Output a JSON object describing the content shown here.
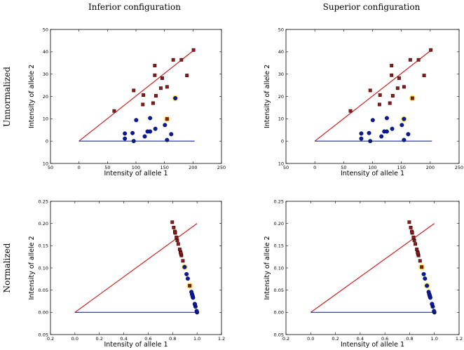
{
  "column_titles": [
    "Inferior configuration",
    "Superior configuration"
  ],
  "row_labels": [
    "Unnormalized",
    "Normalized"
  ],
  "colors": {
    "square": "#8b1a1a",
    "circle": "#0a1a9a",
    "highlight": "#ffe44d",
    "ref_line_red": "#cc2222",
    "ref_line_blue": "#1a22cc"
  },
  "chart_data": [
    {
      "type": "scatter",
      "panel": "Inferior configuration / Unnormalized",
      "xlabel": "Intensity of allele 1",
      "ylabel": "Intensity of allele 2",
      "xlim": [
        -50,
        250
      ],
      "ylim": [
        -10,
        50
      ],
      "xticks": [
        -50,
        0,
        50,
        100,
        150,
        200,
        250
      ],
      "xtick_labels": [
        "50",
        "0",
        "50",
        "100",
        "150",
        "200",
        "250"
      ],
      "yticks": [
        -10,
        0,
        10,
        20,
        30,
        40,
        50
      ],
      "ytick_labels": [
        "10",
        "0",
        "10",
        "20",
        "30",
        "40",
        "50"
      ],
      "lines": [
        {
          "color": "red",
          "x": [
            0,
            203
          ],
          "y": [
            0,
            41
          ]
        },
        {
          "color": "blue",
          "x": [
            0,
            203
          ],
          "y": [
            0,
            0
          ]
        }
      ],
      "squares": [
        [
          61.8,
          13.5
        ],
        [
          96,
          22.7
        ],
        [
          113,
          20.6
        ],
        [
          112,
          16.4
        ],
        [
          130,
          17
        ],
        [
          135,
          20.3
        ],
        [
          133,
          33.8
        ],
        [
          133,
          29.5
        ],
        [
          146,
          28.2
        ],
        [
          143.5,
          23.7
        ],
        [
          154.5,
          24.3
        ],
        [
          165.4,
          36.4
        ],
        [
          179.7,
          36.4
        ],
        [
          189.4,
          29.4
        ],
        [
          201,
          40.8
        ],
        [
          154.5,
          9.9
        ]
      ],
      "circles": [
        [
          80.5,
          3.4
        ],
        [
          80.5,
          1.1
        ],
        [
          94,
          3.6
        ],
        [
          96,
          0
        ],
        [
          100.4,
          9.4
        ],
        [
          115.4,
          2.1
        ],
        [
          120.3,
          4.3
        ],
        [
          124.8,
          4.3
        ],
        [
          124.8,
          10.3
        ],
        [
          134,
          5.5
        ],
        [
          150.8,
          7.2
        ],
        [
          161.8,
          3.1
        ],
        [
          154.5,
          0.5
        ],
        [
          169,
          19.2
        ]
      ],
      "highlighted": [
        {
          "marker": "square",
          "x": 154.5,
          "y": 9.9
        },
        {
          "marker": "circle",
          "x": 169,
          "y": 19.2
        }
      ]
    },
    {
      "type": "scatter",
      "panel": "Superior configuration / Unnormalized",
      "xlabel": "Intensity of allele 1",
      "ylabel": "Intensity of allele 2",
      "xlim": [
        -50,
        250
      ],
      "ylim": [
        -10,
        50
      ],
      "xticks": [
        -50,
        0,
        50,
        100,
        150,
        200,
        250
      ],
      "xtick_labels": [
        "50",
        "0",
        "50",
        "100",
        "150",
        "200",
        "250"
      ],
      "yticks": [
        -10,
        0,
        10,
        20,
        30,
        40,
        50
      ],
      "ytick_labels": [
        "10",
        "0",
        "10",
        "20",
        "30",
        "40",
        "50"
      ],
      "lines": [
        {
          "color": "red",
          "x": [
            0,
            203
          ],
          "y": [
            0,
            41
          ]
        },
        {
          "color": "blue",
          "x": [
            0,
            203
          ],
          "y": [
            0,
            0
          ]
        }
      ],
      "squares": [
        [
          61.8,
          13.5
        ],
        [
          96,
          22.7
        ],
        [
          113,
          20.6
        ],
        [
          112,
          16.4
        ],
        [
          130,
          17
        ],
        [
          135,
          20.3
        ],
        [
          133,
          33.8
        ],
        [
          133,
          29.5
        ],
        [
          146,
          28.2
        ],
        [
          143.5,
          23.7
        ],
        [
          154.5,
          24.3
        ],
        [
          165.4,
          36.4
        ],
        [
          179.7,
          36.4
        ],
        [
          189.4,
          29.4
        ],
        [
          201,
          40.8
        ],
        [
          169,
          19.2
        ]
      ],
      "circles": [
        [
          80.5,
          3.4
        ],
        [
          80.5,
          1.1
        ],
        [
          94,
          3.6
        ],
        [
          96,
          0
        ],
        [
          100.4,
          9.4
        ],
        [
          115.4,
          2.1
        ],
        [
          120.3,
          4.3
        ],
        [
          124.8,
          4.3
        ],
        [
          124.8,
          10.3
        ],
        [
          134,
          5.5
        ],
        [
          150.8,
          7.2
        ],
        [
          161.8,
          3.1
        ],
        [
          154.5,
          0.5
        ],
        [
          154.5,
          9.9
        ]
      ],
      "highlighted": [
        {
          "marker": "circle",
          "x": 154.5,
          "y": 9.9
        },
        {
          "marker": "square",
          "x": 169,
          "y": 19.2
        }
      ]
    },
    {
      "type": "scatter",
      "panel": "Inferior configuration / Normalized",
      "xlabel": "Intensity of allele 1",
      "ylabel": "Intensity of allele 2",
      "xlim": [
        -0.2,
        1.2
      ],
      "ylim": [
        -0.05,
        0.25
      ],
      "xticks": [
        -0.2,
        0,
        0.2,
        0.4,
        0.6,
        0.8,
        1.0,
        1.2
      ],
      "xtick_labels": [
        "0.2",
        "0.0",
        "0.2",
        "0.4",
        "0.6",
        "0.8",
        "1.0",
        "1.2"
      ],
      "yticks": [
        -0.05,
        0,
        0.05,
        0.1,
        0.15,
        0.2,
        0.25
      ],
      "ytick_labels": [
        "0.05",
        "0.00",
        "0.05",
        "0.10",
        "0.15",
        "0.20",
        "0.25"
      ],
      "lines": [
        {
          "color": "red",
          "x": [
            0,
            1
          ],
          "y": [
            0,
            0.2
          ]
        },
        {
          "color": "blue",
          "x": [
            0,
            1
          ],
          "y": [
            0,
            0
          ]
        }
      ],
      "squares": [
        [
          0.821,
          0.179
        ],
        [
          0.809,
          0.191
        ],
        [
          0.846,
          0.154
        ],
        [
          0.872,
          0.128
        ],
        [
          0.884,
          0.116
        ],
        [
          0.869,
          0.131
        ],
        [
          0.797,
          0.203
        ],
        [
          0.818,
          0.182
        ],
        [
          0.838,
          0.162
        ],
        [
          0.858,
          0.142
        ],
        [
          0.864,
          0.136
        ],
        [
          0.82,
          0.18
        ],
        [
          0.832,
          0.168
        ],
        [
          0.866,
          0.134
        ],
        [
          0.831,
          0.169
        ],
        [
          0.94,
          0.06
        ]
      ],
      "circles": [
        [
          0.959,
          0.041
        ],
        [
          0.987,
          0.013
        ],
        [
          0.963,
          0.037
        ],
        [
          1.0,
          0.0
        ],
        [
          0.914,
          0.086
        ],
        [
          0.982,
          0.018
        ],
        [
          0.965,
          0.035
        ],
        [
          0.967,
          0.033
        ],
        [
          0.924,
          0.076
        ],
        [
          0.961,
          0.039
        ],
        [
          0.954,
          0.046
        ],
        [
          0.981,
          0.019
        ],
        [
          0.997,
          0.003
        ],
        [
          0.898,
          0.102
        ]
      ],
      "highlighted": [
        {
          "marker": "square",
          "x": 0.94,
          "y": 0.06
        },
        {
          "marker": "circle",
          "x": 0.898,
          "y": 0.102
        }
      ]
    },
    {
      "type": "scatter",
      "panel": "Superior configuration / Normalized",
      "xlabel": "Intensity of allele 1",
      "ylabel": "Intensity of allele 2",
      "xlim": [
        -0.2,
        1.2
      ],
      "ylim": [
        -0.05,
        0.25
      ],
      "xticks": [
        -0.2,
        0,
        0.2,
        0.4,
        0.6,
        0.8,
        1.0,
        1.2
      ],
      "xtick_labels": [
        "0.2",
        "0.0",
        "0.2",
        "0.4",
        "0.6",
        "0.8",
        "1.0",
        "1.2"
      ],
      "yticks": [
        -0.05,
        0,
        0.05,
        0.1,
        0.15,
        0.2,
        0.25
      ],
      "ytick_labels": [
        "0.05",
        "0.00",
        "0.05",
        "0.10",
        "0.15",
        "0.20",
        "0.25"
      ],
      "lines": [
        {
          "color": "red",
          "x": [
            0,
            1
          ],
          "y": [
            0,
            0.2
          ]
        },
        {
          "color": "blue",
          "x": [
            0,
            1
          ],
          "y": [
            0,
            0
          ]
        }
      ],
      "squares": [
        [
          0.821,
          0.179
        ],
        [
          0.809,
          0.191
        ],
        [
          0.846,
          0.154
        ],
        [
          0.872,
          0.128
        ],
        [
          0.884,
          0.116
        ],
        [
          0.869,
          0.131
        ],
        [
          0.797,
          0.203
        ],
        [
          0.818,
          0.182
        ],
        [
          0.838,
          0.162
        ],
        [
          0.858,
          0.142
        ],
        [
          0.864,
          0.136
        ],
        [
          0.82,
          0.18
        ],
        [
          0.832,
          0.168
        ],
        [
          0.866,
          0.134
        ],
        [
          0.831,
          0.169
        ],
        [
          0.898,
          0.102
        ]
      ],
      "circles": [
        [
          0.959,
          0.041
        ],
        [
          0.987,
          0.013
        ],
        [
          0.963,
          0.037
        ],
        [
          1.0,
          0.0
        ],
        [
          0.914,
          0.086
        ],
        [
          0.982,
          0.018
        ],
        [
          0.965,
          0.035
        ],
        [
          0.967,
          0.033
        ],
        [
          0.924,
          0.076
        ],
        [
          0.961,
          0.039
        ],
        [
          0.954,
          0.046
        ],
        [
          0.981,
          0.019
        ],
        [
          0.997,
          0.003
        ],
        [
          0.94,
          0.06
        ]
      ],
      "highlighted": [
        {
          "marker": "circle",
          "x": 0.94,
          "y": 0.06
        },
        {
          "marker": "square",
          "x": 0.898,
          "y": 0.102
        }
      ]
    }
  ]
}
